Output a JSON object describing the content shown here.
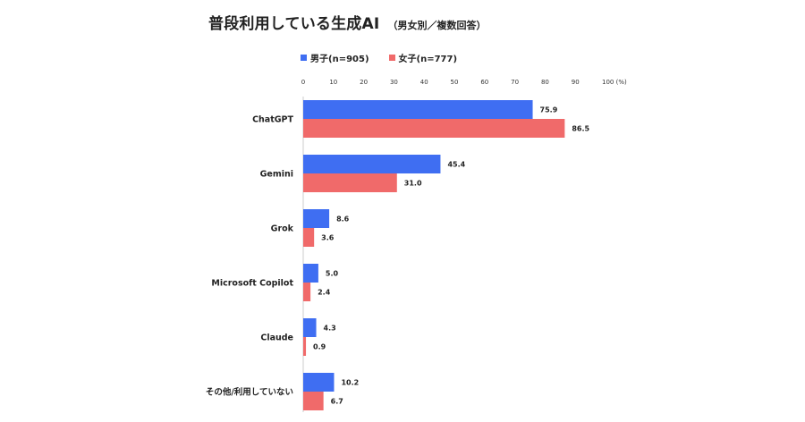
{
  "title": {
    "main": "普段利用している生成AI",
    "sub": "（男女別／複数回答）"
  },
  "colors": {
    "male": "#3f6ef2",
    "female": "#f06a6a"
  },
  "chart_data": {
    "type": "bar",
    "orientation": "horizontal",
    "title": "普段利用している生成AI（男女別／複数回答）",
    "categories": [
      "ChatGPT",
      "Gemini",
      "Grok",
      "Microsoft Copilot",
      "Claude",
      "その他/利用していない"
    ],
    "series": [
      {
        "name": "男子(n=905)",
        "values": [
          75.9,
          45.4,
          8.6,
          5.0,
          4.3,
          10.2
        ]
      },
      {
        "name": "女子(n=777)",
        "values": [
          86.5,
          31.0,
          3.6,
          2.4,
          0.9,
          6.7
        ]
      }
    ],
    "value_labels": {
      "male": [
        "75.9",
        "45.4",
        "8.6",
        "5.0",
        "4.3",
        "10.2"
      ],
      "female": [
        "86.5",
        "31.0",
        "3.6",
        "2.4",
        "0.9",
        "6.7"
      ]
    },
    "xlim": [
      0,
      100
    ],
    "xticks": [
      "0",
      "10",
      "20",
      "30",
      "40",
      "50",
      "60",
      "70",
      "80",
      "90",
      "100 (%)"
    ],
    "xaxis_position": "top",
    "legend_position": "top",
    "grid": false
  }
}
